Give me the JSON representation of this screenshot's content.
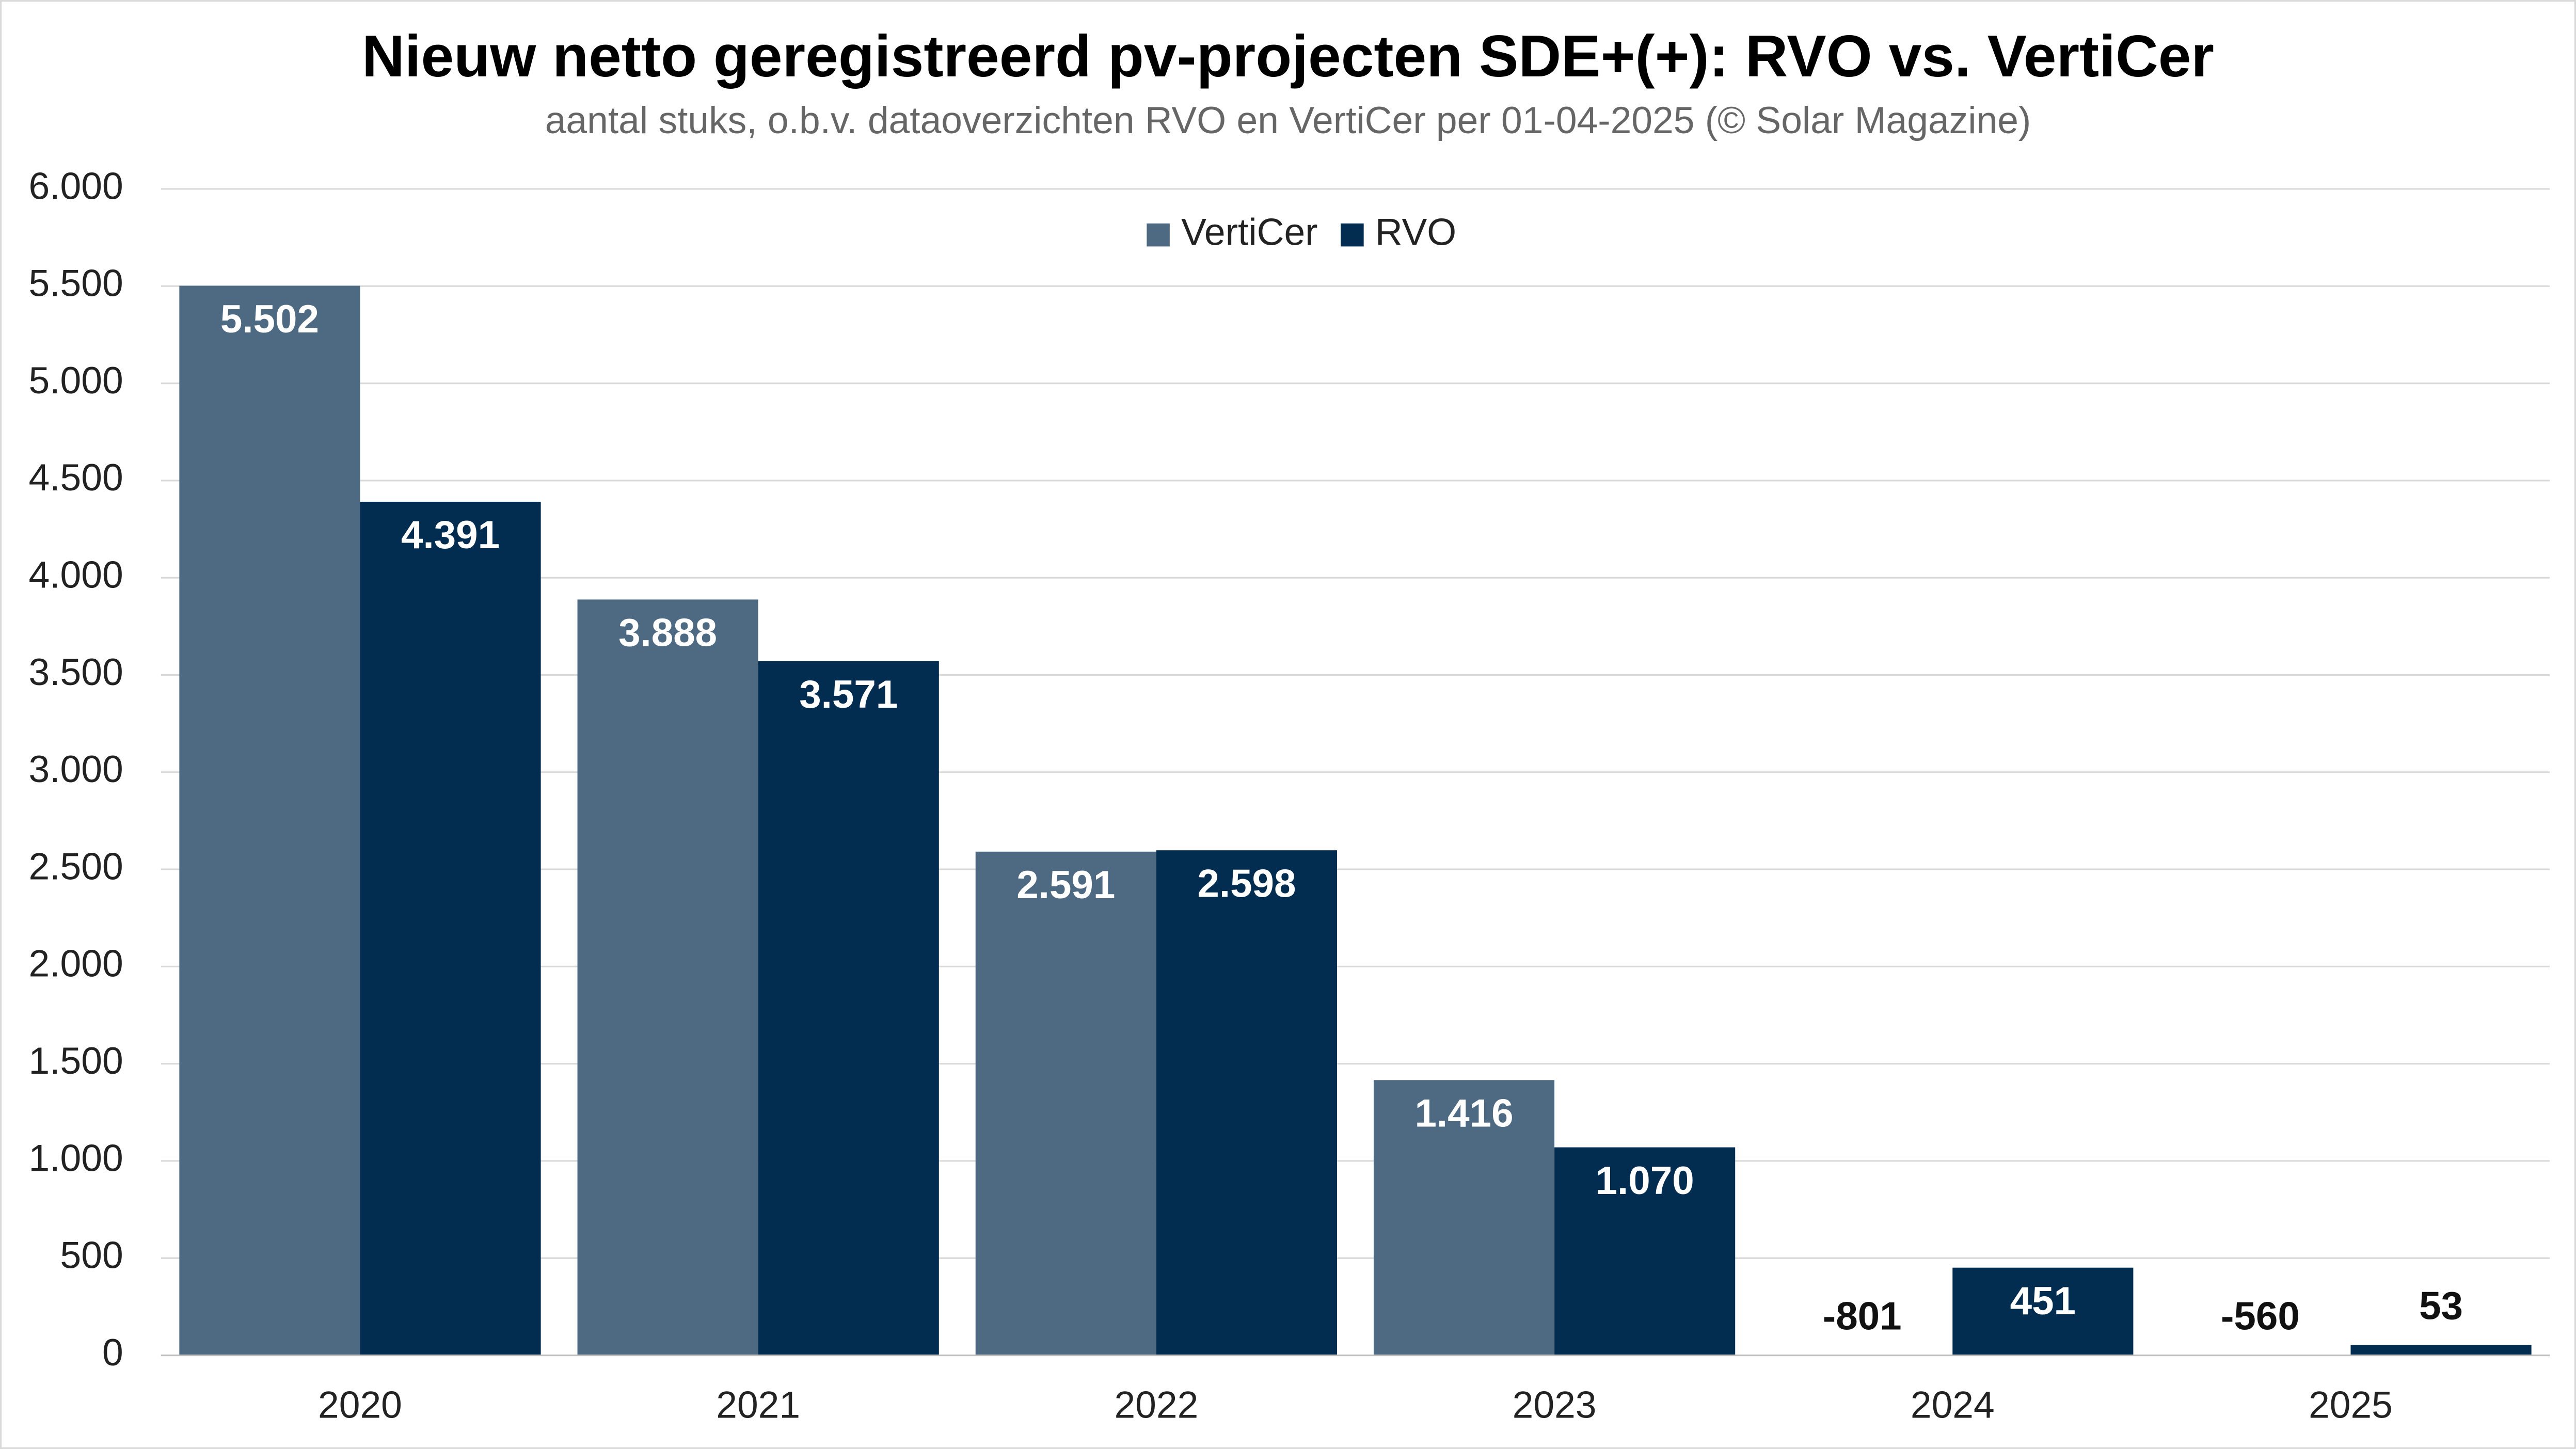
{
  "chart_data": {
    "type": "bar",
    "title": "Nieuw netto geregistreerd pv-projecten SDE+(+): RVO vs. VertiCer",
    "subtitle": "aantal stuks, o.b.v. dataoverzichten RVO en VertiCer per 01-04-2025 (© Solar Magazine)",
    "categories": [
      "2020",
      "2021",
      "2022",
      "2023",
      "2024",
      "2025"
    ],
    "series": [
      {
        "name": "VertiCer",
        "color": "#4e6a83",
        "values": [
          5502,
          3888,
          2591,
          1416,
          -801,
          -560
        ],
        "value_labels": [
          "5.502",
          "3.888",
          "2.591",
          "1.416",
          "-801",
          "-560"
        ]
      },
      {
        "name": "RVO",
        "color": "#022c50",
        "values": [
          4391,
          3571,
          2598,
          1070,
          451,
          53
        ],
        "value_labels": [
          "4.391",
          "3.571",
          "2.598",
          "1.070",
          "451",
          "53"
        ]
      }
    ],
    "ylim": [
      0,
      6000
    ],
    "yticks": [
      0,
      500,
      {
        "value": 1000,
        "label": "1.000"
      },
      {
        "value": 1500,
        "label": "1.500"
      },
      {
        "value": 2000,
        "label": "2.000"
      },
      {
        "value": 2500,
        "label": "2.500"
      },
      {
        "value": 3000,
        "label": "3.000"
      },
      {
        "value": 3500,
        "label": "3.500"
      },
      {
        "value": 4000,
        "label": "4.000"
      },
      {
        "value": 4500,
        "label": "4.500"
      },
      {
        "value": 5000,
        "label": "5.000"
      },
      {
        "value": 5500,
        "label": "5.500"
      },
      {
        "value": 6000,
        "label": "6.000"
      }
    ],
    "grid": true,
    "legend": "top"
  }
}
